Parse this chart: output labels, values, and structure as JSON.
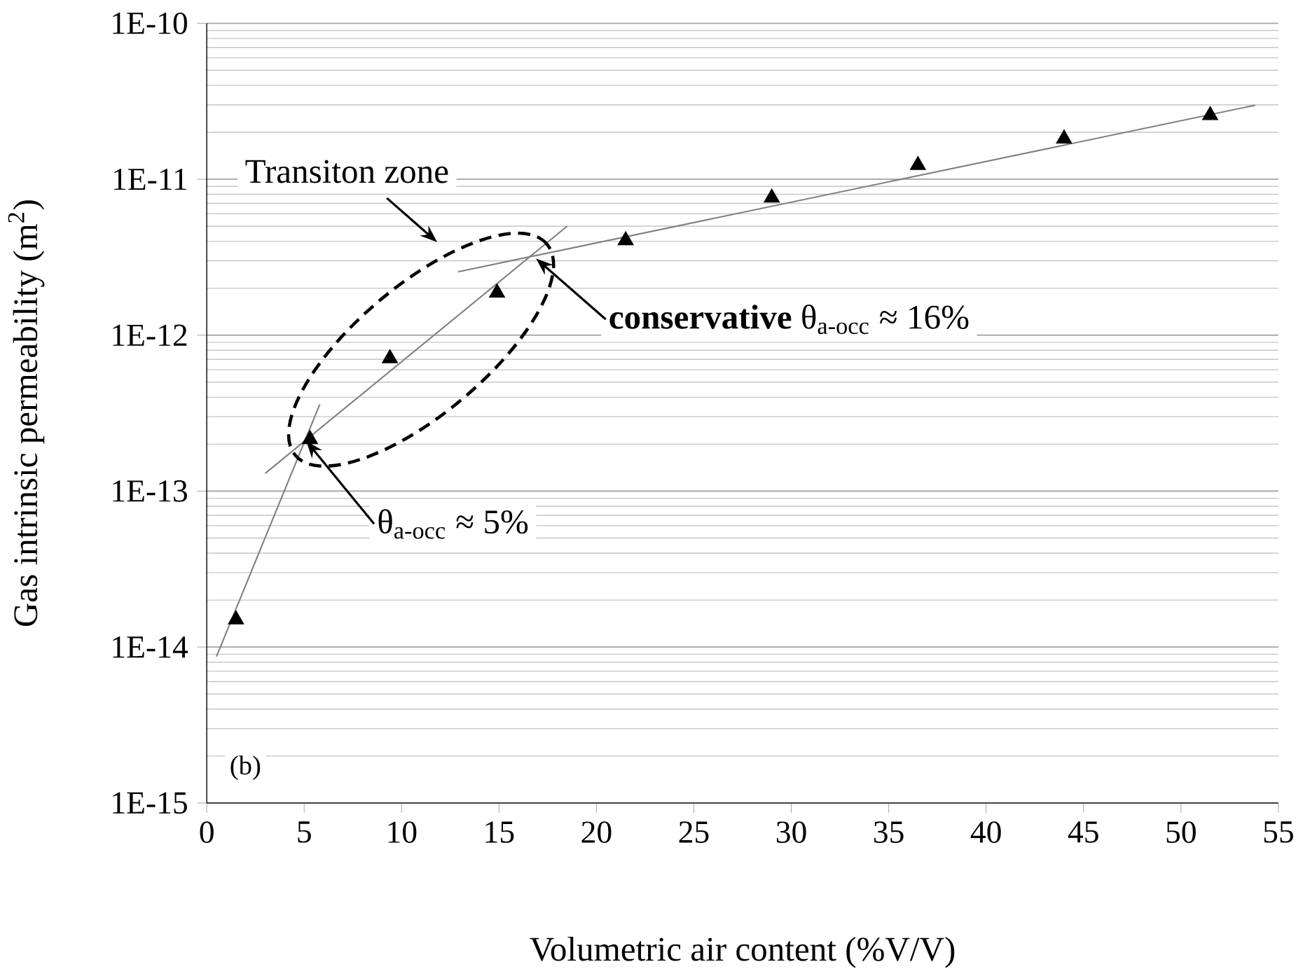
{
  "chart_data": {
    "type": "scatter",
    "xlabel": "Volumetric air content (%V/V)",
    "ylabel": "Gas intrinsic permeability (m$^{2}$)",
    "log": "y",
    "grid": "y",
    "xlim": [
      0,
      55
    ],
    "ylim": [
      1e-15,
      1e-10
    ],
    "xticks": [
      0,
      5,
      10,
      15,
      20,
      25,
      30,
      35,
      40,
      45,
      50,
      55
    ],
    "yticks": [
      {
        "value": 1e-15,
        "label": "1E-15"
      },
      {
        "value": 1e-14,
        "label": "1E-14"
      },
      {
        "value": 1e-13,
        "label": "1E-13"
      },
      {
        "value": 1e-12,
        "label": "1E-12"
      },
      {
        "value": 1e-11,
        "label": "1E-11"
      },
      {
        "value": 1e-10,
        "label": "1E-10"
      }
    ],
    "series": [
      {
        "marker": "triangle",
        "color": "#000000",
        "x": [
          1.5,
          5.3,
          9.4,
          14.9,
          21.5,
          29.0,
          36.5,
          44.0,
          51.5
        ],
        "values": [
          1.5e-14,
          2.15e-13,
          7.1e-13,
          1.87e-12,
          4.05e-12,
          7.6e-12,
          1.23e-11,
          1.82e-11,
          2.57e-11
        ]
      },
      {
        "type": "line",
        "color": "#808080",
        "x": [
          0.5,
          5.8
        ],
        "values": [
          8.7e-15,
          3.6e-13
        ]
      },
      {
        "type": "line",
        "color": "#808080",
        "x": [
          3.0,
          18.5
        ],
        "values": [
          1.3e-13,
          5e-12
        ]
      },
      {
        "type": "line",
        "color": "#808080",
        "x": [
          12.9,
          53.8
        ],
        "values": [
          2.55e-12,
          2.98e-11
        ]
      }
    ],
    "annotations": [
      "Transiton zone",
      {
        "text": "**conservative** θ$_{a-occ}$ ≈ 16%",
        "x": 16.9,
        "y": 3.1e-12
      },
      {
        "text": "θ$_{a-occ}$ ≈ 5%",
        "x": 5.1,
        "y": 2.1e-13
      },
      "(b)"
    ]
  }
}
